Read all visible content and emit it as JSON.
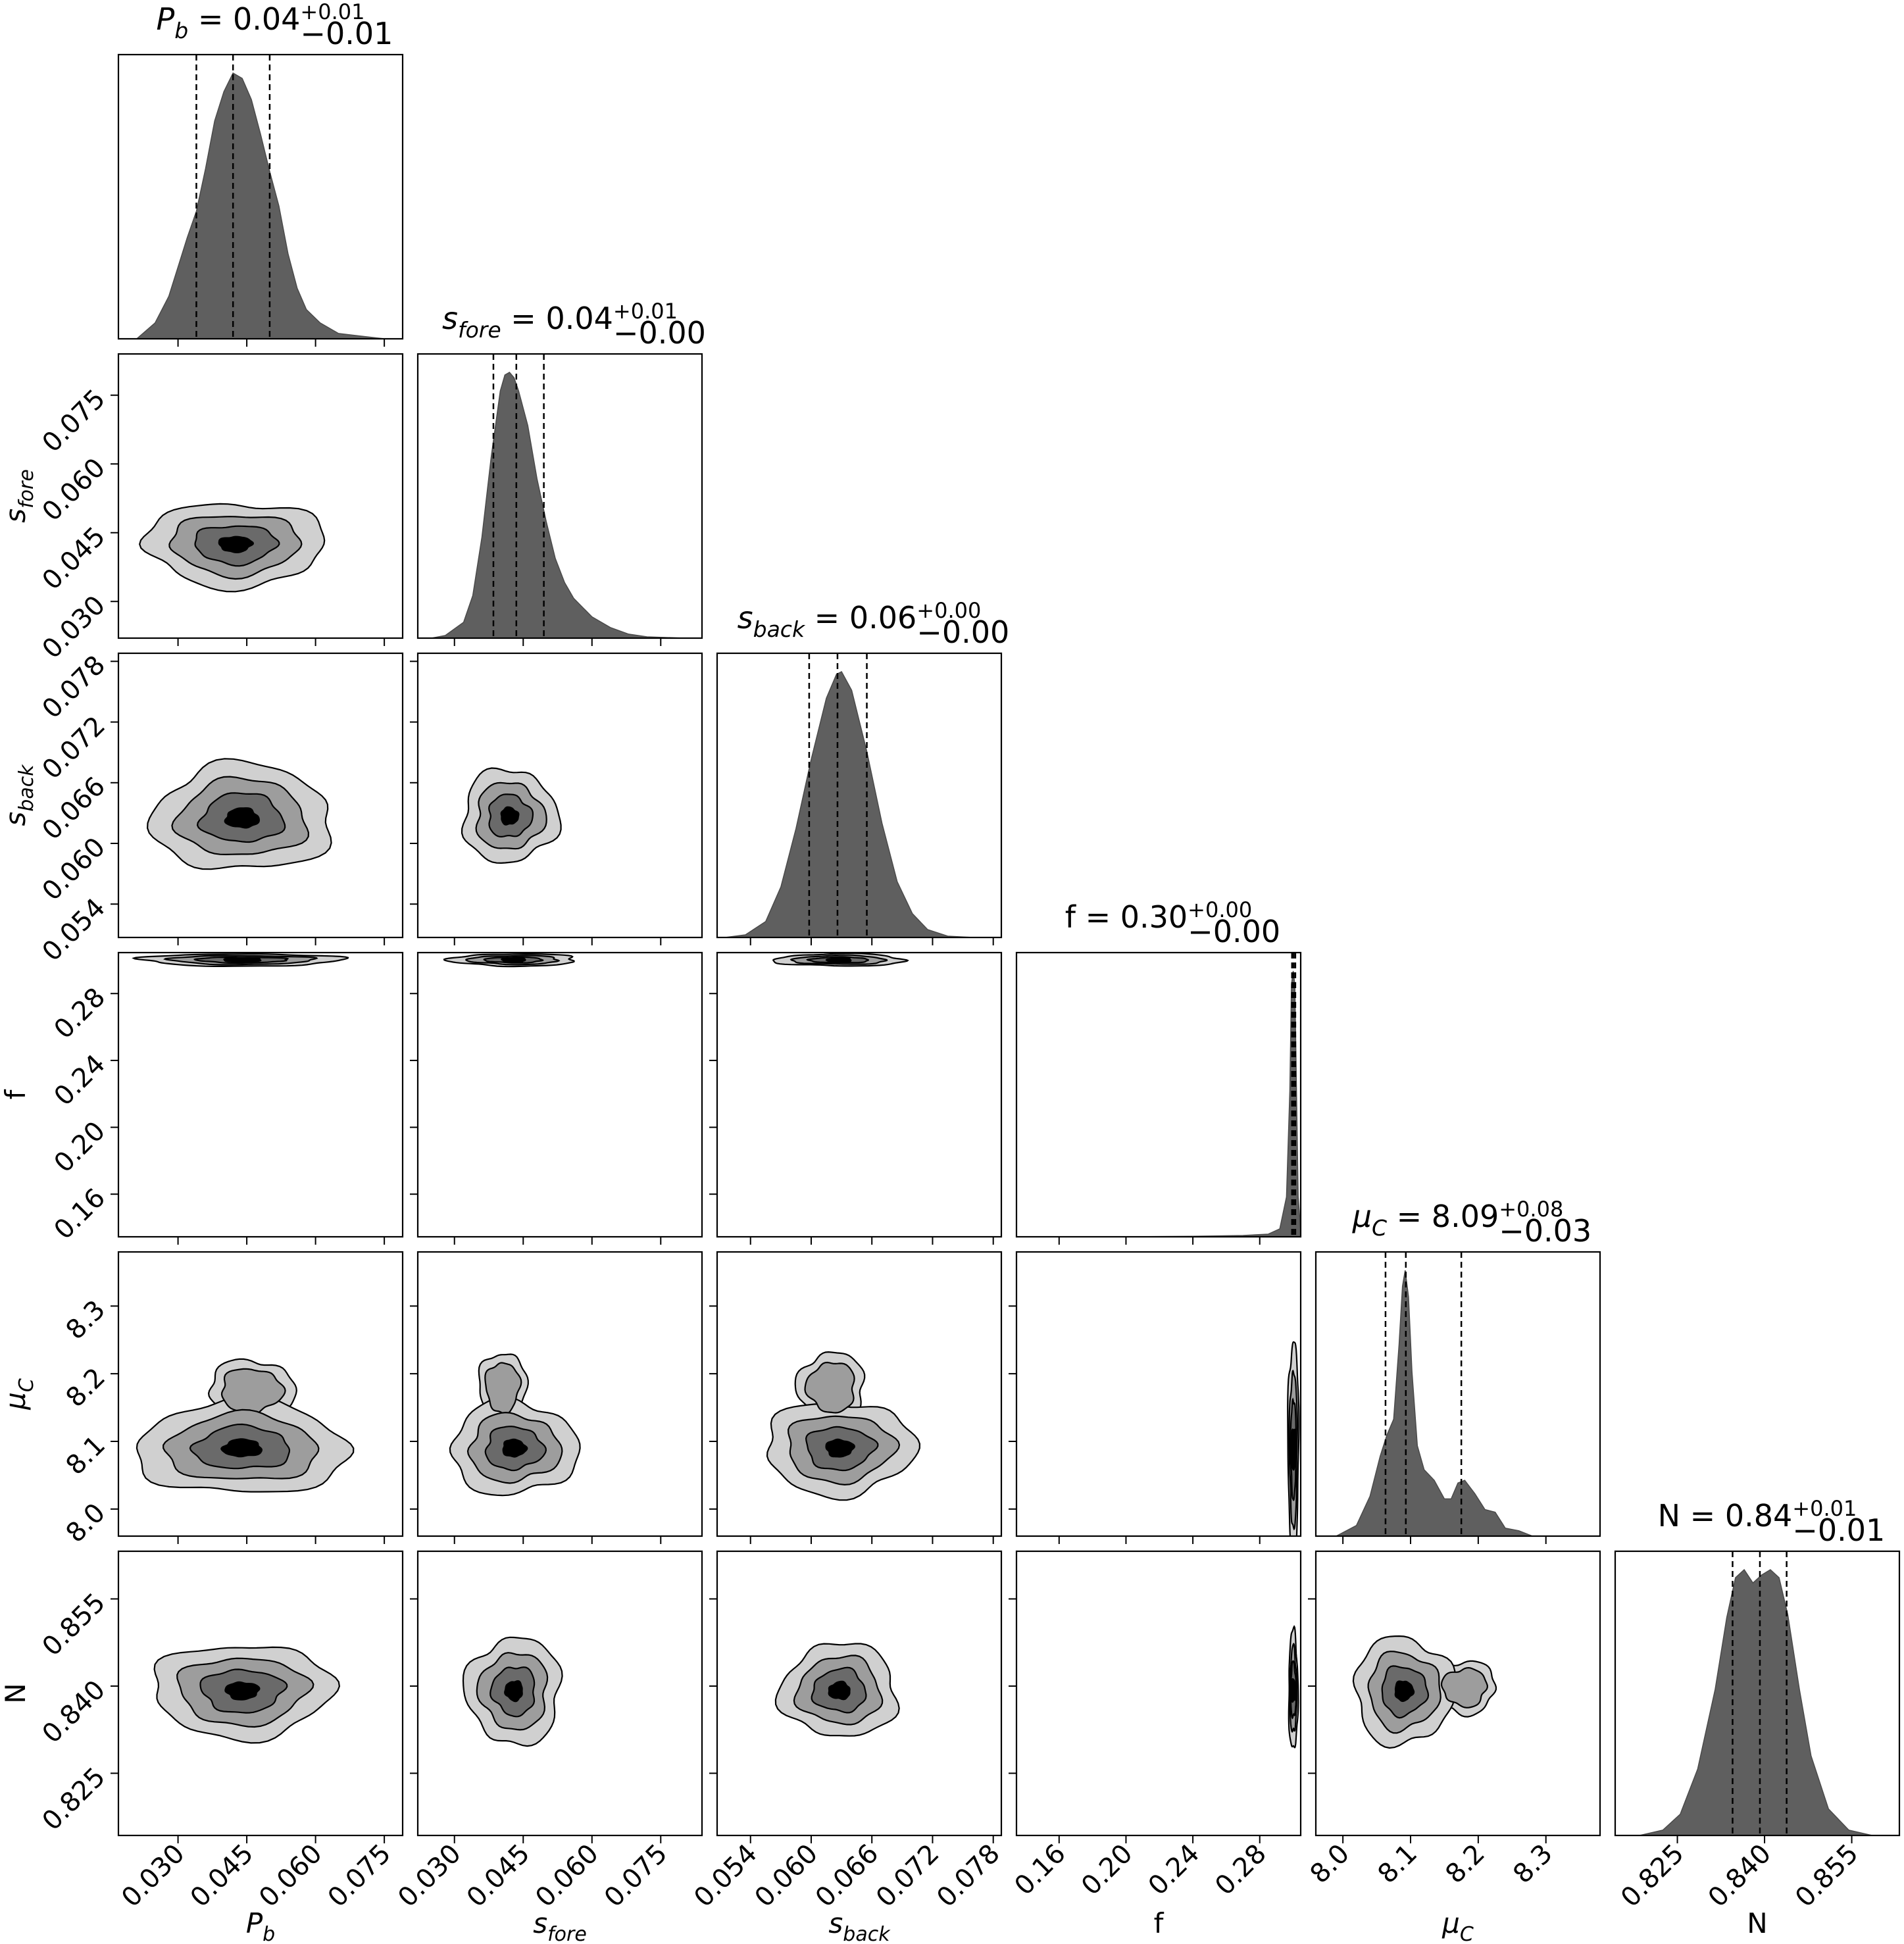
{
  "chart_data": {
    "type": "corner",
    "parameters": [
      {
        "label": "P_b",
        "title": {
          "value": "0.04",
          "plus": "+0.01",
          "minus": "−0.01"
        },
        "ticks": [
          "0.030",
          "0.045",
          "0.060",
          "0.075"
        ],
        "range": [
          0.017,
          0.079
        ],
        "quantiles": [
          0.034,
          0.042,
          0.05
        ],
        "hist": {
          "x": [
            0.021,
            0.025,
            0.028,
            0.03,
            0.032,
            0.034,
            0.036,
            0.038,
            0.04,
            0.042,
            0.044,
            0.046,
            0.048,
            0.05,
            0.052,
            0.054,
            0.056,
            0.058,
            0.061,
            0.065,
            0.07,
            0.075
          ],
          "y": [
            0.0,
            0.06,
            0.16,
            0.27,
            0.38,
            0.48,
            0.64,
            0.82,
            0.93,
            1.0,
            0.98,
            0.9,
            0.77,
            0.63,
            0.5,
            0.32,
            0.19,
            0.11,
            0.06,
            0.02,
            0.01,
            0.0
          ]
        }
      },
      {
        "label": "s_fore",
        "title": {
          "value": "0.04",
          "plus": "+0.01",
          "minus": "−0.00"
        },
        "ticks": [
          "0.030",
          "0.045",
          "0.060",
          "0.075"
        ],
        "range": [
          0.022,
          0.084
        ],
        "quantiles": [
          0.0385,
          0.0435,
          0.0495
        ],
        "hist": {
          "x": [
            0.025,
            0.028,
            0.032,
            0.034,
            0.036,
            0.038,
            0.04,
            0.041,
            0.042,
            0.043,
            0.044,
            0.046,
            0.048,
            0.05,
            0.052,
            0.054,
            0.056,
            0.06,
            0.064,
            0.068,
            0.072,
            0.08
          ],
          "y": [
            0.0,
            0.01,
            0.06,
            0.16,
            0.38,
            0.68,
            0.93,
            0.99,
            1.0,
            0.98,
            0.93,
            0.8,
            0.6,
            0.44,
            0.3,
            0.21,
            0.15,
            0.08,
            0.04,
            0.015,
            0.005,
            0.0
          ]
        }
      },
      {
        "label": "s_back",
        "title": {
          "value": "0.06",
          "plus": "+0.00",
          "minus": "−0.00"
        },
        "ticks": [
          "0.054",
          "0.060",
          "0.066",
          "0.072",
          "0.078"
        ],
        "range": [
          0.0507,
          0.0788
        ],
        "quantiles": [
          0.0598,
          0.0626,
          0.0655
        ],
        "hist": {
          "x": [
            0.0515,
            0.0535,
            0.0555,
            0.057,
            0.0585,
            0.06,
            0.0615,
            0.0625,
            0.063,
            0.064,
            0.0655,
            0.067,
            0.0685,
            0.07,
            0.0715,
            0.0735,
            0.076
          ],
          "y": [
            0.0,
            0.01,
            0.06,
            0.19,
            0.41,
            0.67,
            0.9,
            0.99,
            1.0,
            0.93,
            0.7,
            0.43,
            0.21,
            0.09,
            0.03,
            0.005,
            0.0
          ]
        }
      },
      {
        "label": "f",
        "title": {
          "value": "0.30",
          "plus": "+0.00",
          "minus": "−0.00"
        },
        "ticks": [
          "0.16",
          "0.20",
          "0.24",
          "0.28"
        ],
        "range": [
          0.1345,
          0.3045
        ],
        "quantiles": [
          0.2993,
          0.3003,
          0.3013
        ],
        "hist": {
          "x": [
            0.2,
            0.24,
            0.27,
            0.285,
            0.292,
            0.296,
            0.298,
            0.299,
            0.3,
            0.301,
            0.302,
            0.303,
            0.3045
          ],
          "y": [
            0.0,
            0.002,
            0.005,
            0.01,
            0.03,
            0.15,
            0.55,
            0.95,
            1.0,
            0.95,
            0.55,
            0.15,
            0.02
          ]
        }
      },
      {
        "label": "μ_C",
        "title": {
          "value": "8.09",
          "plus": "+0.08",
          "minus": "−0.03"
        },
        "ticks": [
          "8.0",
          "8.1",
          "8.2",
          "8.3"
        ],
        "range": [
          7.96,
          8.38
        ],
        "quantiles": [
          8.063,
          8.093,
          8.175
        ],
        "hist": {
          "x": [
            7.99,
            8.02,
            8.04,
            8.055,
            8.065,
            8.075,
            8.083,
            8.088,
            8.092,
            8.097,
            8.102,
            8.11,
            8.12,
            8.135,
            8.15,
            8.16,
            8.17,
            8.18,
            8.195,
            8.21,
            8.225,
            8.24,
            8.26,
            8.28,
            8.3
          ],
          "y": [
            0.0,
            0.04,
            0.15,
            0.3,
            0.38,
            0.44,
            0.72,
            0.94,
            1.0,
            0.9,
            0.62,
            0.34,
            0.25,
            0.21,
            0.14,
            0.14,
            0.2,
            0.21,
            0.16,
            0.1,
            0.09,
            0.03,
            0.02,
            0.0,
            0.0
          ]
        }
      },
      {
        "label": "N",
        "title": {
          "value": "0.84",
          "plus": "+0.01",
          "minus": "−0.01"
        },
        "ticks": [
          "0.825",
          "0.840",
          "0.855"
        ],
        "range": [
          0.8143,
          0.8632
        ],
        "quantiles": [
          0.8345,
          0.8392,
          0.8438
        ],
        "hist": {
          "x": [
            0.8185,
            0.8225,
            0.8255,
            0.8285,
            0.8315,
            0.8335,
            0.835,
            0.8365,
            0.838,
            0.8395,
            0.841,
            0.8425,
            0.844,
            0.846,
            0.848,
            0.851,
            0.8545,
            0.8585
          ],
          "y": [
            0.0,
            0.02,
            0.08,
            0.25,
            0.55,
            0.82,
            0.97,
            1.0,
            0.95,
            0.98,
            1.0,
            0.97,
            0.83,
            0.55,
            0.3,
            0.1,
            0.02,
            0.0
          ]
        }
      }
    ],
    "pairs": [
      {
        "x": 0,
        "y": 1,
        "cx": 0.0425,
        "cy": 0.0425,
        "sx": 0.0085,
        "sy": 0.004
      },
      {
        "x": 0,
        "y": 2,
        "cx": 0.044,
        "cy": 0.0625,
        "sx": 0.0085,
        "sy": 0.0023
      },
      {
        "x": 1,
        "y": 2,
        "cx": 0.042,
        "cy": 0.0627,
        "sx": 0.0045,
        "sy": 0.002
      },
      {
        "x": 0,
        "y": 3,
        "cx": 0.044,
        "cy": 0.3001,
        "sx": 0.0095,
        "sy": 0.0016
      },
      {
        "x": 1,
        "y": 3,
        "cx": 0.043,
        "cy": 0.3001,
        "sx": 0.006,
        "sy": 0.0016
      },
      {
        "x": 2,
        "y": 3,
        "cx": 0.0628,
        "cy": 0.3001,
        "sx": 0.0028,
        "sy": 0.0016
      },
      {
        "x": 0,
        "y": 4,
        "cx": 0.044,
        "cy": 8.09,
        "sx": 0.01,
        "sy": 0.03,
        "tail": {
          "cx": 0.046,
          "cy": 8.175,
          "sx": 0.0045,
          "sy": 0.022
        }
      },
      {
        "x": 1,
        "y": 4,
        "cx": 0.043,
        "cy": 8.09,
        "sx": 0.006,
        "sy": 0.03,
        "tail": {
          "cx": 0.0405,
          "cy": 8.18,
          "sx": 0.0025,
          "sy": 0.025
        }
      },
      {
        "x": 2,
        "y": 4,
        "cx": 0.0628,
        "cy": 8.09,
        "sx": 0.0032,
        "sy": 0.03,
        "tail": {
          "cx": 0.062,
          "cy": 8.18,
          "sx": 0.0016,
          "sy": 0.025
        }
      },
      {
        "x": 3,
        "y": 4,
        "cx": 0.3001,
        "cy": 8.09,
        "sx": 0.0014,
        "sy": 0.07
      },
      {
        "x": 0,
        "y": 5,
        "cx": 0.044,
        "cy": 0.8392,
        "sx": 0.0085,
        "sy": 0.0035
      },
      {
        "x": 1,
        "y": 5,
        "cx": 0.043,
        "cy": 0.8392,
        "sx": 0.0045,
        "sy": 0.004
      },
      {
        "x": 2,
        "y": 5,
        "cx": 0.0628,
        "cy": 0.8392,
        "sx": 0.0025,
        "sy": 0.0035
      },
      {
        "x": 3,
        "y": 5,
        "cx": 0.3001,
        "cy": 0.8392,
        "sx": 0.0012,
        "sy": 0.0045
      },
      {
        "x": 4,
        "y": 5,
        "cx": 8.09,
        "cy": 0.8392,
        "sx": 0.032,
        "sy": 0.004,
        "tail": {
          "cx": 8.18,
          "cy": 0.8398,
          "sx": 0.022,
          "sy": 0.0022
        }
      }
    ],
    "contour_levels": [
      0.35,
      0.65,
      0.87,
      0.97
    ],
    "contour_fills": [
      "#d0d0d0",
      "#9d9d9d",
      "#6a6a6a",
      "#000000"
    ],
    "hist_color": "#5f5f5f"
  }
}
